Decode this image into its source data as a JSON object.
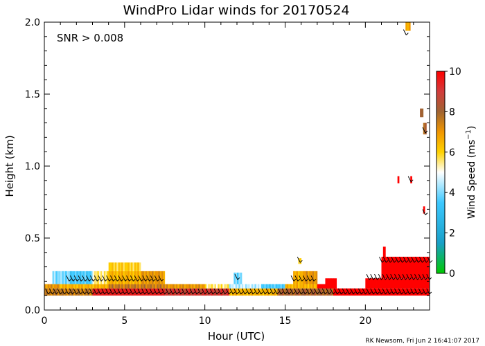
{
  "chart_data": {
    "type": "heatmap",
    "title": "WindPro Lidar winds for 20170524",
    "annotation": "SNR > 0.008",
    "xlabel": "Hour (UTC)",
    "ylabel": "Height (km)",
    "xlim": [
      0,
      24
    ],
    "ylim": [
      0.0,
      2.0
    ],
    "x_ticks": [
      {
        "value": 0,
        "label": "0"
      },
      {
        "value": 5,
        "label": "5"
      },
      {
        "value": 10,
        "label": "10"
      },
      {
        "value": 15,
        "label": "15"
      },
      {
        "value": 20,
        "label": "20"
      }
    ],
    "y_ticks": [
      {
        "value": 0.0,
        "label": "0.0"
      },
      {
        "value": 0.5,
        "label": "0.5"
      },
      {
        "value": 1.0,
        "label": "1.0"
      },
      {
        "value": 1.5,
        "label": "1.5"
      },
      {
        "value": 2.0,
        "label": "2.0"
      }
    ],
    "colorbar": {
      "label": "Wind Speed (ms",
      "label_sup": "−1",
      "label_close": ")",
      "min": 0,
      "max": 10,
      "ticks": [
        {
          "value": 0,
          "label": "0"
        },
        {
          "value": 2,
          "label": "2"
        },
        {
          "value": 4,
          "label": "4"
        },
        {
          "value": 6,
          "label": "6"
        },
        {
          "value": 8,
          "label": "8"
        },
        {
          "value": 10,
          "label": "10"
        }
      ],
      "stops": [
        {
          "v": 0,
          "color": "#00c800"
        },
        {
          "v": 1.5,
          "color": "#19a0c8"
        },
        {
          "v": 3.5,
          "color": "#3cc8ff"
        },
        {
          "v": 5,
          "color": "#ffffff"
        },
        {
          "v": 6,
          "color": "#ffd200"
        },
        {
          "v": 7,
          "color": "#f09600"
        },
        {
          "v": 8,
          "color": "#a06432"
        },
        {
          "v": 9,
          "color": "#d23c3c"
        },
        {
          "v": 10,
          "color": "#ff0000"
        }
      ]
    },
    "layers": [
      {
        "name": "base",
        "x0": 0.0,
        "x1": 24.0,
        "y0": 0.1,
        "y1": 0.15,
        "segments": [
          {
            "x0": 0.0,
            "x1": 3.0,
            "v": 7.5
          },
          {
            "x0": 3.0,
            "x1": 7.5,
            "v": 9.5
          },
          {
            "x0": 7.5,
            "x1": 11.5,
            "v": 9.0
          },
          {
            "x0": 11.5,
            "x1": 14.5,
            "v": 6.5
          },
          {
            "x0": 14.5,
            "x1": 18.0,
            "v": 8.0
          },
          {
            "x0": 18.0,
            "x1": 22.5,
            "v": 10.0
          },
          {
            "x0": 22.5,
            "x1": 24.0,
            "v": 10.0
          }
        ]
      },
      {
        "name": "low",
        "x0": 0.0,
        "x1": 18.0,
        "y0": 0.15,
        "y1": 0.18,
        "segments": [
          {
            "x0": 0.0,
            "x1": 1.0,
            "v": 7.0
          },
          {
            "x0": 1.0,
            "x1": 4.0,
            "v": 6.5
          },
          {
            "x0": 4.0,
            "x1": 7.5,
            "v": 7.5
          },
          {
            "x0": 7.5,
            "x1": 10.0,
            "v": 7.0
          },
          {
            "x0": 10.0,
            "x1": 11.5,
            "v": 5.5
          },
          {
            "x0": 11.5,
            "x1": 13.5,
            "v": 4.5
          },
          {
            "x0": 13.5,
            "x1": 15.0,
            "v": 3.5
          },
          {
            "x0": 15.0,
            "x1": 17.0,
            "v": 6.5
          },
          {
            "x0": 17.0,
            "x1": 18.0,
            "v": 10.0
          }
        ]
      },
      {
        "name": "mid",
        "x0": 0.5,
        "x1": 7.5,
        "y0": 0.18,
        "y1": 0.27,
        "segments": [
          {
            "x0": 0.5,
            "x1": 1.5,
            "v": 4.0
          },
          {
            "x0": 1.5,
            "x1": 3.0,
            "v": 3.5
          },
          {
            "x0": 3.0,
            "x1": 4.0,
            "v": 5.5
          },
          {
            "x0": 4.0,
            "x1": 6.0,
            "v": 6.5
          },
          {
            "x0": 6.0,
            "x1": 7.5,
            "v": 7.0
          }
        ]
      },
      {
        "name": "top",
        "x0": 4.0,
        "x1": 6.0,
        "y0": 0.27,
        "y1": 0.33,
        "segments": [
          {
            "x0": 4.0,
            "x1": 6.0,
            "v": 6.0
          }
        ]
      },
      {
        "name": "noon",
        "x0": 11.8,
        "x1": 12.3,
        "y0": 0.18,
        "y1": 0.26,
        "segments": [
          {
            "x0": 11.8,
            "x1": 12.3,
            "v": 4.0
          }
        ]
      },
      {
        "name": "afternoon",
        "x0": 15.5,
        "x1": 17.0,
        "y0": 0.18,
        "y1": 0.27,
        "segments": [
          {
            "x0": 15.5,
            "x1": 16.2,
            "v": 6.5
          },
          {
            "x0": 16.2,
            "x1": 17.0,
            "v": 7.0
          }
        ]
      },
      {
        "name": "red-step",
        "x0": 20.0,
        "x1": 24.0,
        "y0": 0.15,
        "y1": 0.22,
        "segments": [
          {
            "x0": 20.0,
            "x1": 24.0,
            "v": 10.0
          }
        ]
      },
      {
        "name": "red-top",
        "x0": 21.0,
        "x1": 24.0,
        "y0": 0.22,
        "y1": 0.37,
        "segments": [
          {
            "x0": 21.0,
            "x1": 24.0,
            "v": 10.0
          }
        ]
      },
      {
        "name": "red-gap",
        "x0": 17.5,
        "x1": 18.2,
        "y0": 0.15,
        "y1": 0.22,
        "segments": [
          {
            "x0": 17.5,
            "x1": 18.2,
            "v": 10.0
          }
        ]
      },
      {
        "name": "spike-1",
        "x0": 21.1,
        "x1": 21.25,
        "y0": 0.37,
        "y1": 0.44,
        "segments": [
          {
            "x0": 21.1,
            "x1": 21.25,
            "v": 10.0
          }
        ]
      },
      {
        "name": "spike-2",
        "x0": 22.0,
        "x1": 22.1,
        "y0": 0.88,
        "y1": 0.93,
        "segments": [
          {
            "x0": 22.0,
            "x1": 22.1,
            "v": 10.0
          }
        ]
      },
      {
        "name": "spike-3",
        "x0": 22.8,
        "x1": 22.9,
        "y0": 0.88,
        "y1": 0.93,
        "segments": [
          {
            "x0": 22.8,
            "x1": 22.9,
            "v": 10.0
          }
        ]
      },
      {
        "name": "spike-4",
        "x0": 23.6,
        "x1": 23.7,
        "y0": 0.67,
        "y1": 0.72,
        "segments": [
          {
            "x0": 23.6,
            "x1": 23.7,
            "v": 10.0
          }
        ]
      },
      {
        "name": "spike-5",
        "x0": 23.4,
        "x1": 23.6,
        "y0": 1.34,
        "y1": 1.4,
        "segments": [
          {
            "x0": 23.4,
            "x1": 23.6,
            "v": 8.0
          }
        ]
      },
      {
        "name": "spike-6",
        "x0": 23.6,
        "x1": 23.8,
        "y0": 1.22,
        "y1": 1.3,
        "segments": [
          {
            "x0": 23.6,
            "x1": 23.8,
            "v": 8.0
          }
        ]
      },
      {
        "name": "spike-7",
        "x0": 22.5,
        "x1": 22.8,
        "y0": 1.94,
        "y1": 2.0,
        "segments": [
          {
            "x0": 22.5,
            "x1": 22.8,
            "v": 6.5
          }
        ]
      },
      {
        "name": "spike-8",
        "x0": 15.8,
        "x1": 16.0,
        "y0": 0.32,
        "y1": 0.36,
        "segments": [
          {
            "x0": 15.8,
            "x1": 16.0,
            "v": 6.0
          }
        ]
      }
    ],
    "barb_rows": [
      {
        "y": 0.12,
        "x0": 0.2,
        "x1": 24.0,
        "step": 0.25
      },
      {
        "y": 0.21,
        "x0": 1.5,
        "x1": 7.4,
        "step": 0.25
      },
      {
        "y": 0.21,
        "x0": 15.5,
        "x1": 16.8,
        "step": 0.25
      },
      {
        "y": 0.22,
        "x0": 20.2,
        "x1": 24.0,
        "step": 0.25
      },
      {
        "y": 0.34,
        "x0": 21.0,
        "x1": 24.0,
        "step": 0.25
      }
    ],
    "barb_points": [
      {
        "x": 12.0,
        "y": 0.22
      },
      {
        "x": 15.9,
        "y": 0.34
      },
      {
        "x": 22.5,
        "y": 1.92
      },
      {
        "x": 23.7,
        "y": 1.24
      },
      {
        "x": 23.7,
        "y": 0.67
      },
      {
        "x": 22.8,
        "y": 0.9
      }
    ]
  },
  "footer": "RK Newsom, Fri Jun  2 16:41:07 2017"
}
